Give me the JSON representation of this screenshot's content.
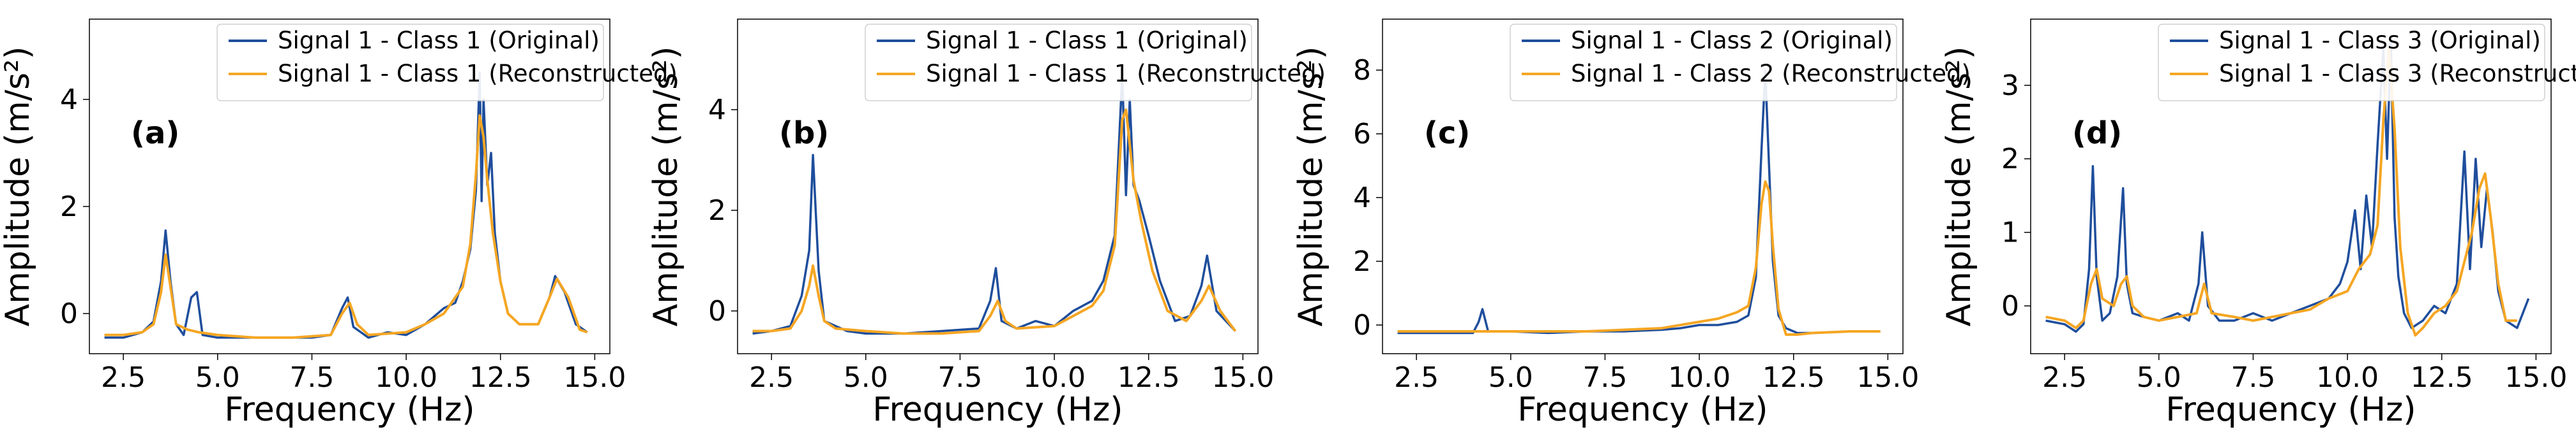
{
  "colors": {
    "original": "#1f4e9c",
    "reconstructed": "#f5a623"
  },
  "chart_data": [
    {
      "type": "line",
      "panel_label": "(a)",
      "xlabel": "Frequency (Hz)",
      "ylabel": "Amplitude (m/s²)",
      "xlim": [
        1.6,
        15.4
      ],
      "ylim": [
        -0.75,
        5.5
      ],
      "xticks": [
        2.5,
        5.0,
        7.5,
        10.0,
        12.5,
        15.0
      ],
      "xtick_labels": [
        "2.5",
        "5.0",
        "7.5",
        "10.0",
        "12.5",
        "15.0"
      ],
      "yticks": [
        0,
        2,
        4
      ],
      "ytick_labels": [
        "0",
        "2",
        "4"
      ],
      "legend_position": "top-right",
      "series": [
        {
          "name": "Signal 1 - Class 1 (Original)",
          "x": [
            2.0,
            2.5,
            3.0,
            3.3,
            3.5,
            3.62,
            3.75,
            3.9,
            4.1,
            4.3,
            4.45,
            4.6,
            5.0,
            6.0,
            7.0,
            7.5,
            8.0,
            8.3,
            8.45,
            8.6,
            9.0,
            9.5,
            10.0,
            10.5,
            11.0,
            11.3,
            11.5,
            11.7,
            11.85,
            11.95,
            12.0,
            12.05,
            12.15,
            12.25,
            12.35,
            12.5,
            12.7,
            13.0,
            13.5,
            13.8,
            13.95,
            14.2,
            14.5,
            14.8
          ],
          "y": [
            -0.45,
            -0.45,
            -0.35,
            -0.15,
            0.6,
            1.55,
            0.6,
            -0.2,
            -0.4,
            0.3,
            0.4,
            -0.4,
            -0.45,
            -0.45,
            -0.45,
            -0.45,
            -0.4,
            0.1,
            0.3,
            -0.25,
            -0.45,
            -0.35,
            -0.4,
            -0.2,
            0.1,
            0.2,
            0.6,
            1.2,
            2.3,
            4.5,
            2.1,
            4.0,
            2.4,
            3.0,
            1.5,
            0.6,
            0.0,
            -0.2,
            -0.2,
            0.3,
            0.7,
            0.4,
            -0.2,
            -0.35
          ]
        },
        {
          "name": "Signal 1 - Class 1 (Reconstructed)",
          "x": [
            2.0,
            2.5,
            3.0,
            3.3,
            3.5,
            3.62,
            3.75,
            3.9,
            4.2,
            4.5,
            5.0,
            6.0,
            7.0,
            8.0,
            8.3,
            8.5,
            8.7,
            9.0,
            10.0,
            10.5,
            11.0,
            11.3,
            11.5,
            11.7,
            11.85,
            11.95,
            12.05,
            12.15,
            12.3,
            12.5,
            12.7,
            13.0,
            13.5,
            13.8,
            14.0,
            14.3,
            14.6,
            14.8
          ],
          "y": [
            -0.4,
            -0.4,
            -0.35,
            -0.2,
            0.4,
            1.1,
            0.5,
            -0.2,
            -0.3,
            -0.35,
            -0.4,
            -0.45,
            -0.45,
            -0.4,
            0.0,
            0.2,
            -0.2,
            -0.4,
            -0.35,
            -0.2,
            0.0,
            0.3,
            0.5,
            1.3,
            2.6,
            3.7,
            3.3,
            2.5,
            1.5,
            0.6,
            0.0,
            -0.2,
            -0.2,
            0.3,
            0.65,
            0.3,
            -0.3,
            -0.35
          ]
        }
      ]
    },
    {
      "type": "line",
      "panel_label": "(b)",
      "xlabel": "Frequency (Hz)",
      "ylabel": "Amplitude (m/s²)",
      "xlim": [
        1.6,
        15.4
      ],
      "ylim": [
        -0.85,
        5.8
      ],
      "xticks": [
        2.5,
        5.0,
        7.5,
        10.0,
        12.5,
        15.0
      ],
      "xtick_labels": [
        "2.5",
        "5.0",
        "7.5",
        "10.0",
        "12.5",
        "15.0"
      ],
      "yticks": [
        0,
        2,
        4
      ],
      "ytick_labels": [
        "0",
        "2",
        "4"
      ],
      "legend_position": "top-right",
      "series": [
        {
          "name": "Signal 1 - Class 1 (Original)",
          "x": [
            2.0,
            2.5,
            3.0,
            3.3,
            3.5,
            3.6,
            3.75,
            3.9,
            4.2,
            4.5,
            5.0,
            6.0,
            7.0,
            8.0,
            8.3,
            8.45,
            8.6,
            9.0,
            9.5,
            10.0,
            10.5,
            11.0,
            11.3,
            11.6,
            11.8,
            11.9,
            12.0,
            12.1,
            12.25,
            12.5,
            12.8,
            13.2,
            13.6,
            13.9,
            14.05,
            14.3,
            14.8
          ],
          "y": [
            -0.45,
            -0.4,
            -0.3,
            0.3,
            1.2,
            3.1,
            0.8,
            -0.2,
            -0.3,
            -0.4,
            -0.45,
            -0.45,
            -0.4,
            -0.35,
            0.2,
            0.85,
            -0.2,
            -0.35,
            -0.2,
            -0.3,
            0.0,
            0.2,
            0.6,
            1.5,
            4.7,
            2.3,
            4.2,
            2.5,
            2.2,
            1.5,
            0.6,
            -0.2,
            -0.1,
            0.5,
            1.1,
            0.0,
            -0.4
          ]
        },
        {
          "name": "Signal 1 - Class 1 (Reconstructed)",
          "x": [
            2.0,
            2.5,
            3.0,
            3.3,
            3.5,
            3.6,
            3.75,
            3.9,
            4.2,
            5.0,
            6.0,
            7.0,
            8.0,
            8.3,
            8.5,
            8.7,
            9.0,
            10.0,
            10.5,
            11.0,
            11.3,
            11.6,
            11.8,
            11.9,
            12.0,
            12.1,
            12.3,
            12.6,
            13.0,
            13.5,
            13.9,
            14.1,
            14.4,
            14.8
          ],
          "y": [
            -0.4,
            -0.4,
            -0.35,
            0.0,
            0.5,
            0.9,
            0.3,
            -0.2,
            -0.35,
            -0.4,
            -0.45,
            -0.45,
            -0.4,
            -0.1,
            0.2,
            -0.2,
            -0.35,
            -0.3,
            -0.1,
            0.1,
            0.4,
            1.3,
            3.8,
            4.0,
            3.3,
            2.6,
            1.8,
            0.8,
            0.0,
            -0.2,
            0.2,
            0.5,
            0.0,
            -0.4
          ]
        }
      ]
    },
    {
      "type": "line",
      "panel_label": "(c)",
      "xlabel": "Frequency (Hz)",
      "ylabel": "Amplitude (m/s²)",
      "xlim": [
        1.6,
        15.4
      ],
      "ylim": [
        -0.9,
        9.6
      ],
      "xticks": [
        2.5,
        5.0,
        7.5,
        10.0,
        12.5,
        15.0
      ],
      "xtick_labels": [
        "2.5",
        "5.0",
        "7.5",
        "10.0",
        "12.5",
        "15.0"
      ],
      "yticks": [
        0,
        2,
        4,
        6,
        8
      ],
      "ytick_labels": [
        "0",
        "2",
        "4",
        "6",
        "8"
      ],
      "legend_position": "top-right",
      "series": [
        {
          "name": "Signal 1 - Class 2 (Original)",
          "x": [
            2.0,
            3.0,
            4.0,
            4.15,
            4.25,
            4.4,
            5.0,
            6.0,
            7.0,
            8.0,
            9.0,
            9.5,
            10.0,
            10.5,
            11.0,
            11.3,
            11.5,
            11.65,
            11.75,
            11.85,
            11.95,
            12.1,
            12.3,
            12.6,
            13.0,
            14.0,
            14.8
          ],
          "y": [
            -0.25,
            -0.25,
            -0.25,
            0.1,
            0.5,
            -0.2,
            -0.2,
            -0.25,
            -0.2,
            -0.2,
            -0.15,
            -0.1,
            0.0,
            0.0,
            0.1,
            0.3,
            1.5,
            5.5,
            8.0,
            5.0,
            2.0,
            0.3,
            -0.1,
            -0.25,
            -0.25,
            -0.2,
            -0.2
          ]
        },
        {
          "name": "Signal 1 - Class 2 (Reconstructed)",
          "x": [
            2.0,
            3.0,
            4.0,
            5.0,
            6.0,
            7.0,
            8.0,
            9.0,
            10.0,
            10.5,
            11.0,
            11.3,
            11.5,
            11.65,
            11.75,
            11.85,
            11.95,
            12.1,
            12.3,
            12.6,
            13.0,
            14.0,
            14.8
          ],
          "y": [
            -0.2,
            -0.2,
            -0.2,
            -0.2,
            -0.2,
            -0.2,
            -0.15,
            -0.1,
            0.1,
            0.2,
            0.4,
            0.6,
            1.8,
            3.8,
            4.5,
            4.2,
            2.5,
            0.5,
            -0.3,
            -0.3,
            -0.25,
            -0.2,
            -0.2
          ]
        }
      ]
    },
    {
      "type": "line",
      "panel_label": "(d)",
      "xlabel": "Frequency (Hz)",
      "ylabel": "Amplitude (m/s²)",
      "xlim": [
        1.6,
        15.4
      ],
      "ylim": [
        -0.65,
        3.9
      ],
      "xticks": [
        2.5,
        5.0,
        7.5,
        10.0,
        12.5,
        15.0
      ],
      "xtick_labels": [
        "2.5",
        "5.0",
        "7.5",
        "10.0",
        "12.5",
        "15.0"
      ],
      "yticks": [
        0,
        1,
        2,
        3
      ],
      "ytick_labels": [
        "0",
        "1",
        "2",
        "3"
      ],
      "legend_position": "top-right",
      "series": [
        {
          "name": "Signal 1 - Class 3 (Original)",
          "x": [
            2.0,
            2.5,
            2.8,
            3.0,
            3.15,
            3.25,
            3.35,
            3.5,
            3.7,
            3.9,
            4.05,
            4.15,
            4.3,
            4.6,
            5.0,
            5.5,
            5.8,
            6.05,
            6.15,
            6.3,
            6.6,
            7.0,
            7.5,
            8.0,
            8.5,
            9.0,
            9.5,
            9.8,
            10.0,
            10.2,
            10.35,
            10.5,
            10.65,
            10.8,
            10.95,
            11.05,
            11.15,
            11.25,
            11.35,
            11.5,
            11.7,
            12.0,
            12.3,
            12.6,
            12.9,
            13.1,
            13.25,
            13.4,
            13.55,
            13.7,
            13.85,
            14.0,
            14.2,
            14.5,
            14.8
          ],
          "y": [
            -0.2,
            -0.25,
            -0.35,
            -0.25,
            0.5,
            1.9,
            0.4,
            -0.2,
            -0.1,
            0.4,
            1.6,
            0.3,
            -0.1,
            -0.15,
            -0.2,
            -0.1,
            -0.2,
            0.3,
            1.0,
            0.0,
            -0.2,
            -0.2,
            -0.1,
            -0.2,
            -0.1,
            0.0,
            0.1,
            0.3,
            0.6,
            1.3,
            0.5,
            1.5,
            0.8,
            2.2,
            3.5,
            2.0,
            3.6,
            1.2,
            0.4,
            -0.1,
            -0.3,
            -0.2,
            0.0,
            -0.1,
            0.3,
            2.1,
            0.5,
            2.0,
            0.8,
            1.6,
            1.0,
            0.2,
            -0.2,
            -0.3,
            0.1
          ]
        },
        {
          "name": "Signal 1 - Class 3 (Reconstructed)",
          "x": [
            2.0,
            2.5,
            2.8,
            3.0,
            3.2,
            3.35,
            3.5,
            3.8,
            4.0,
            4.15,
            4.3,
            4.6,
            5.0,
            5.5,
            6.0,
            6.2,
            6.4,
            7.0,
            7.5,
            8.0,
            8.5,
            9.0,
            9.5,
            10.0,
            10.3,
            10.6,
            10.8,
            10.95,
            11.1,
            11.25,
            11.4,
            11.6,
            11.8,
            12.0,
            12.3,
            12.6,
            12.9,
            13.1,
            13.3,
            13.5,
            13.65,
            13.8,
            14.0,
            14.2,
            14.5
          ],
          "y": [
            -0.15,
            -0.2,
            -0.3,
            -0.2,
            0.3,
            0.5,
            0.1,
            0.0,
            0.3,
            0.4,
            0.0,
            -0.15,
            -0.2,
            -0.15,
            -0.1,
            0.3,
            -0.1,
            -0.15,
            -0.2,
            -0.15,
            -0.1,
            -0.05,
            0.1,
            0.2,
            0.5,
            0.7,
            1.1,
            2.5,
            3.5,
            2.4,
            0.8,
            -0.1,
            -0.4,
            -0.3,
            -0.1,
            0.0,
            0.2,
            0.6,
            1.0,
            1.6,
            1.8,
            1.2,
            0.3,
            -0.2,
            -0.2
          ]
        }
      ]
    }
  ]
}
